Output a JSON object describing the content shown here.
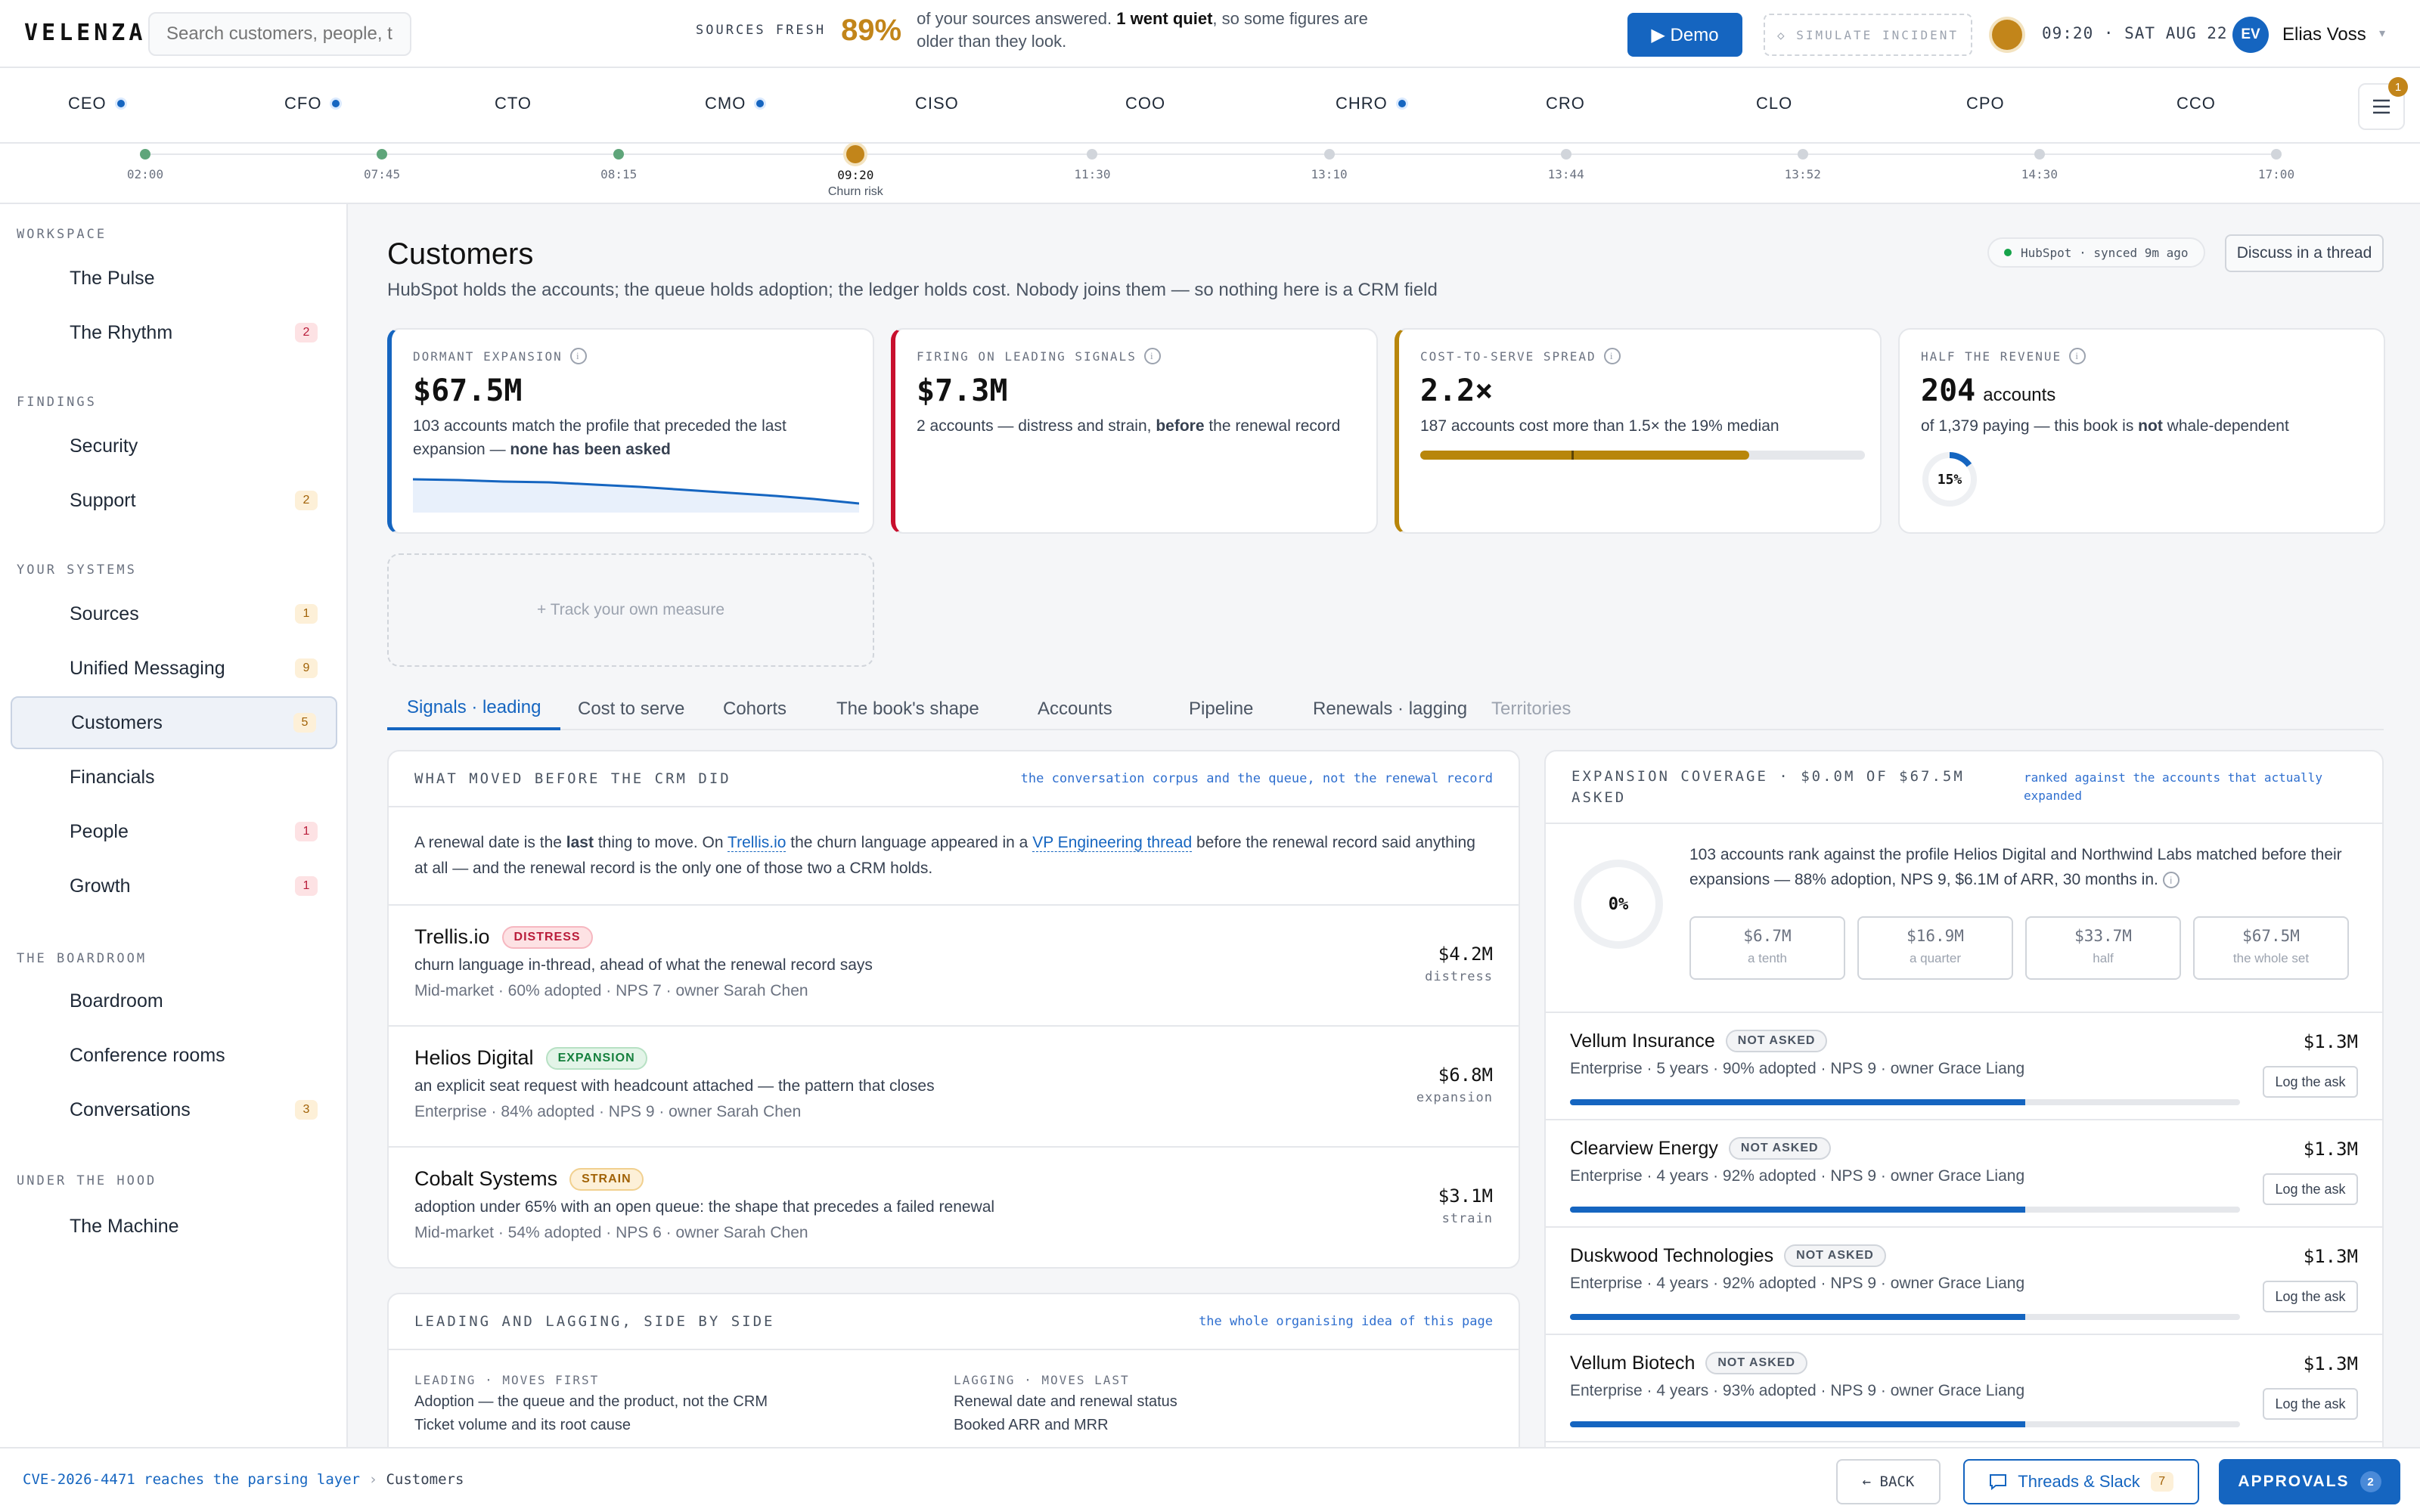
{
  "app": {
    "logo": "VELENZA."
  },
  "search": {
    "placeholder": "Search customers, people, ti"
  },
  "sources": {
    "label": "SOURCES FRESH",
    "percent": "89%",
    "text_a": "of your sources answered. ",
    "text_b": "1 went quiet",
    "text_c": ", so some figures are older than they look."
  },
  "header": {
    "demo_label": "▶ Demo",
    "incident_label": "◇ SIMULATE INCIDENT",
    "clock": "09:20 · SAT AUG 22",
    "user_initials": "EV",
    "user_name": "Elias Voss"
  },
  "roles": [
    {
      "label": "CEO",
      "icon": "ceo-icon",
      "dot": true
    },
    {
      "label": "CFO",
      "icon": "cfo-icon",
      "dot": true
    },
    {
      "label": "CTO",
      "icon": "cto-icon",
      "dot": false
    },
    {
      "label": "CMO",
      "icon": "cmo-icon",
      "dot": true
    },
    {
      "label": "CISO",
      "icon": "shield-icon",
      "dot": false
    },
    {
      "label": "COO",
      "icon": "refresh-icon",
      "dot": false
    },
    {
      "label": "CHRO",
      "icon": "rings-icon",
      "dot": true
    },
    {
      "label": "CRO",
      "icon": "bars-icon",
      "dot": false
    },
    {
      "label": "CLO",
      "icon": "scale-icon",
      "dot": false
    },
    {
      "label": "CPO",
      "icon": "square-icon",
      "dot": false
    },
    {
      "label": "CCO",
      "icon": "bell-icon",
      "dot": false
    }
  ],
  "menu_badge": "1",
  "timeline": [
    {
      "time": "02:00",
      "state": "done",
      "caption": ""
    },
    {
      "time": "07:45",
      "state": "done",
      "caption": ""
    },
    {
      "time": "08:15",
      "state": "done",
      "caption": ""
    },
    {
      "time": "09:20",
      "state": "current",
      "caption": "Churn risk"
    },
    {
      "time": "11:30",
      "state": "future",
      "caption": ""
    },
    {
      "time": "13:10",
      "state": "future",
      "caption": ""
    },
    {
      "time": "13:44",
      "state": "future",
      "caption": ""
    },
    {
      "time": "13:52",
      "state": "future",
      "caption": ""
    },
    {
      "time": "14:30",
      "state": "future",
      "caption": ""
    },
    {
      "time": "17:00",
      "state": "future",
      "caption": ""
    }
  ],
  "sidebar": {
    "sections": [
      "WORKSPACE",
      "FINDINGS",
      "YOUR SYSTEMS",
      "THE BOARDROOM",
      "UNDER THE HOOD"
    ],
    "items": [
      {
        "label": "The Pulse",
        "icon": "pulse-icon",
        "badge": "",
        "badge_tone": ""
      },
      {
        "label": "The Rhythm",
        "icon": "clock-icon",
        "badge": "2",
        "badge_tone": "red"
      },
      {
        "label": "Security",
        "icon": "shield-icon",
        "badge": "",
        "badge_tone": ""
      },
      {
        "label": "Support",
        "icon": "help-icon",
        "badge": "2",
        "badge_tone": "amber"
      },
      {
        "label": "Sources",
        "icon": "sources-icon",
        "badge": "1",
        "badge_tone": "amber"
      },
      {
        "label": "Unified Messaging",
        "icon": "message-icon",
        "badge": "9",
        "badge_tone": "amber"
      },
      {
        "label": "Customers",
        "icon": "home-icon",
        "badge": "5",
        "badge_tone": "amber"
      },
      {
        "label": "Financials",
        "icon": "chart-line-icon",
        "badge": "",
        "badge_tone": ""
      },
      {
        "label": "People",
        "icon": "people-icon",
        "badge": "1",
        "badge_tone": "red"
      },
      {
        "label": "Growth",
        "icon": "trend-up-icon",
        "badge": "1",
        "badge_tone": "red"
      },
      {
        "label": "Boardroom",
        "icon": "monitor-icon",
        "badge": "",
        "badge_tone": ""
      },
      {
        "label": "Conference rooms",
        "icon": "door-icon",
        "badge": "",
        "badge_tone": ""
      },
      {
        "label": "Conversations",
        "icon": "eye-icon",
        "badge": "3",
        "badge_tone": "amber"
      },
      {
        "label": "The Machine",
        "icon": "gear-icon",
        "badge": "",
        "badge_tone": ""
      }
    ]
  },
  "page": {
    "title": "Customers",
    "subtitle": "HubSpot holds the accounts; the queue holds adoption; the ledger holds cost. Nobody joins them — so nothing here is a CRM field",
    "sync": "HubSpot · synced 9m ago",
    "discuss": "Discuss in a thread",
    "track": "+ Track your own measure"
  },
  "kpis": [
    {
      "label": "DORMANT EXPANSION",
      "value": "$67.5M",
      "unit": "",
      "desc_a": "103 accounts match the profile that preceded the last expansion — ",
      "desc_b": "none has been asked",
      "desc_c": ""
    },
    {
      "label": "FIRING ON LEADING SIGNALS",
      "value": "$7.3M",
      "unit": "",
      "desc_a": "2 accounts — distress and strain, ",
      "desc_b": "before",
      "desc_c": " the renewal record"
    },
    {
      "label": "COST-TO-SERVE SPREAD",
      "value": "2.2×",
      "unit": "",
      "desc_a": "187 accounts cost more than 1.5× the 19% median",
      "desc_b": "",
      "desc_c": "",
      "bar_fill": 0.74,
      "bar_marker": 0.34
    },
    {
      "label": "HALF THE REVENUE",
      "value": "204",
      "unit": "accounts",
      "desc_a": "of 1,379 paying — this book is ",
      "desc_b": "not",
      "desc_c": " whale-dependent",
      "ring": "15%",
      "ring_value": 0.15
    }
  ],
  "tabs": [
    {
      "label": "Signals · leading",
      "state": "active"
    },
    {
      "label": "Cost to serve",
      "state": ""
    },
    {
      "label": "Cohorts",
      "state": ""
    },
    {
      "label": "The book's shape",
      "state": ""
    },
    {
      "label": "Accounts",
      "state": ""
    },
    {
      "label": "Pipeline",
      "state": ""
    },
    {
      "label": "Renewals · lagging",
      "state": ""
    },
    {
      "label": "Territories",
      "state": "disabled"
    }
  ],
  "signals": {
    "title": "WHAT MOVED BEFORE THE CRM DID",
    "note": "the conversation corpus and the queue, not the renewal record",
    "intro": {
      "a": "A renewal date is the ",
      "b": "last",
      "c": " thing to move. On ",
      "link1": "Trellis.io",
      "d": " the churn language appeared in a ",
      "link2": "VP Engineering thread",
      "e": " before the renewal record said anything at all — and the renewal record is the only one of those two a CRM holds."
    },
    "rows": [
      {
        "name": "Trellis.io",
        "tag": "DISTRESS",
        "tag_tone": "dis",
        "desc": "churn language in-thread, ahead of what the renewal record says",
        "meta": "Mid-market · 60% adopted · NPS 7 · owner Sarah Chen",
        "amount": "$4.2M",
        "kind": "distress"
      },
      {
        "name": "Helios Digital",
        "tag": "EXPANSION",
        "tag_tone": "exp",
        "desc": "an explicit seat request with headcount attached — the pattern that closes",
        "meta": "Enterprise · 84% adopted · NPS 9 · owner Sarah Chen",
        "amount": "$6.8M",
        "kind": "expansion"
      },
      {
        "name": "Cobalt Systems",
        "tag": "STRAIN",
        "tag_tone": "str",
        "desc": "adoption under 65% with an open queue: the shape that precedes a failed renewal",
        "meta": "Mid-market · 54% adopted · NPS 6 · owner Sarah Chen",
        "amount": "$3.1M",
        "kind": "strain"
      }
    ]
  },
  "leadlag": {
    "title": "LEADING AND LAGGING, SIDE BY SIDE",
    "note": "the whole organising idea of this page",
    "leading_head": "LEADING · MOVES FIRST",
    "leading": [
      "Adoption — the queue and the product, not the CRM",
      "Ticket volume and its root cause"
    ],
    "lagging_head": "LAGGING · MOVES LAST",
    "lagging": [
      "Renewal date and renewal status",
      "Booked ARR and MRR"
    ]
  },
  "coverage": {
    "title": "EXPANSION COVERAGE · $0.0M OF $67.5M ASKED",
    "note": "ranked against the accounts that actually expanded",
    "ring": "0%",
    "ring_value": 0,
    "desc": "103 accounts rank against the profile Helios Digital and Northwind Labs matched before their expansions — 88% adoption, NPS 9, $6.1M of ARR, 30 months in.",
    "steps": [
      {
        "value": "$6.7M",
        "label": "a tenth"
      },
      {
        "value": "$16.9M",
        "label": "a quarter"
      },
      {
        "value": "$33.7M",
        "label": "half"
      },
      {
        "value": "$67.5M",
        "label": "the whole set"
      }
    ],
    "accounts": [
      {
        "name": "Vellum Insurance",
        "tag": "NOT ASKED",
        "meta": "Enterprise · 5 years · 90% adopted · NPS 9 · owner Grace Liang",
        "amount": "$1.3M",
        "action": "Log the ask",
        "score": 0.68
      },
      {
        "name": "Clearview Energy",
        "tag": "NOT ASKED",
        "meta": "Enterprise · 4 years · 92% adopted · NPS 9 · owner Grace Liang",
        "amount": "$1.3M",
        "action": "Log the ask",
        "score": 0.68
      },
      {
        "name": "Duskwood Technologies",
        "tag": "NOT ASKED",
        "meta": "Enterprise · 4 years · 92% adopted · NPS 9 · owner Grace Liang",
        "amount": "$1.3M",
        "action": "Log the ask",
        "score": 0.68
      },
      {
        "name": "Vellum Biotech",
        "tag": "NOT ASKED",
        "meta": "Enterprise · 4 years · 93% adopted · NPS 9 · owner Grace Liang",
        "amount": "$1.3M",
        "action": "Log the ask",
        "score": 0.68
      }
    ]
  },
  "footer": {
    "crumb_link": "CVE-2026-4471 reaches the parsing layer",
    "crumb_sep": "›",
    "crumb_current": "Customers",
    "back": "← BACK",
    "threads": "Threads & Slack",
    "threads_badge": "7",
    "approvals": "APPROVALS",
    "approvals_badge": "2"
  },
  "colors": {
    "accent": "#1565c0",
    "amber": "#c2851a",
    "red": "#c8102e",
    "green": "#5fa57a"
  }
}
